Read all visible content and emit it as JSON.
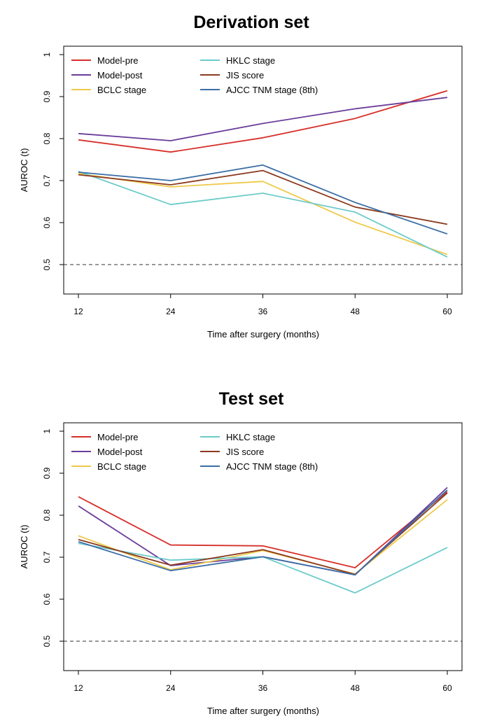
{
  "chart_data": [
    {
      "type": "line",
      "title": "Derivation set",
      "xlabel": "Time after surgery (months)",
      "ylabel": "AUROC (t)",
      "x": [
        12,
        24,
        36,
        48,
        60
      ],
      "xticks": [
        "12",
        "24",
        "36",
        "48",
        "60"
      ],
      "ylim": [
        0.43,
        1.02
      ],
      "yticks": [
        "0.5",
        "0.6",
        "0.7",
        "0.8",
        "0.9",
        "1"
      ],
      "reference_line": 0.5,
      "legend_position": "top-left",
      "series": [
        {
          "name": "Model-pre",
          "color": "#d7302b",
          "values": [
            0.797,
            0.768,
            0.802,
            0.848,
            0.914
          ]
        },
        {
          "name": "Model-post",
          "color": "#6a3d9a",
          "values": [
            0.812,
            0.795,
            0.836,
            0.871,
            0.898
          ]
        },
        {
          "name": "BCLC stage",
          "color": "#eec94a",
          "values": [
            0.717,
            0.685,
            0.698,
            0.601,
            0.524
          ]
        },
        {
          "name": "HKLC stage",
          "color": "#6ccbcb",
          "values": [
            0.722,
            0.643,
            0.67,
            0.625,
            0.518
          ]
        },
        {
          "name": "JIS score",
          "color": "#8b3a1e",
          "values": [
            0.714,
            0.69,
            0.724,
            0.637,
            0.596
          ]
        },
        {
          "name": "AJCC TNM stage (8th)",
          "color": "#3a6ea5",
          "values": [
            0.72,
            0.7,
            0.737,
            0.648,
            0.573
          ]
        }
      ]
    },
    {
      "type": "line",
      "title": "Test set",
      "xlabel": "Time after surgery (months)",
      "ylabel": "AUROC (t)",
      "x": [
        12,
        24,
        36,
        48,
        60
      ],
      "xticks": [
        "12",
        "24",
        "36",
        "48",
        "60"
      ],
      "ylim": [
        0.43,
        1.02
      ],
      "yticks": [
        "0.5",
        "0.6",
        "0.7",
        "0.8",
        "0.9",
        "1"
      ],
      "reference_line": 0.5,
      "legend_position": "top-left",
      "series": [
        {
          "name": "Model-pre",
          "color": "#d7302b",
          "values": [
            0.844,
            0.729,
            0.727,
            0.675,
            0.856
          ]
        },
        {
          "name": "Model-post",
          "color": "#6a3d9a",
          "values": [
            0.822,
            0.68,
            0.701,
            0.658,
            0.866
          ]
        },
        {
          "name": "BCLC stage",
          "color": "#eec94a",
          "values": [
            0.751,
            0.67,
            0.716,
            0.66,
            0.837
          ]
        },
        {
          "name": "HKLC stage",
          "color": "#6ccbcb",
          "values": [
            0.733,
            0.693,
            0.701,
            0.615,
            0.723
          ]
        },
        {
          "name": "JIS score",
          "color": "#8b3a1e",
          "values": [
            0.742,
            0.681,
            0.718,
            0.659,
            0.853
          ]
        },
        {
          "name": "AJCC TNM stage (8th)",
          "color": "#3a6ea5",
          "values": [
            0.737,
            0.668,
            0.701,
            0.658,
            0.86
          ]
        }
      ]
    }
  ]
}
